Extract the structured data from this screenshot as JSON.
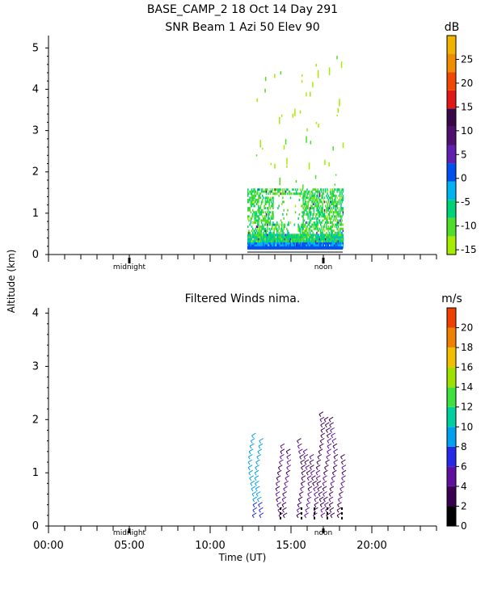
{
  "header": {
    "title": "BASE_CAMP_2   18 Oct 14 Day 291",
    "subtitle": "SNR Beam 1 Azi   50 Elev 90"
  },
  "y_axis_label": "Altitude (km)",
  "x_axis_label": "Time (UT)",
  "markers": {
    "midnight": "midnight",
    "noon": "noon"
  },
  "chart_data": [
    {
      "type": "heatmap",
      "title": "SNR Beam 1 Azi   50 Elev 90",
      "ylabel": "Altitude (km)",
      "xlim": [
        0,
        24
      ],
      "ylim": [
        0,
        5.3
      ],
      "yticks": [
        0,
        1,
        2,
        3,
        4,
        5
      ],
      "colorbar": {
        "unit": "dB",
        "range": [
          -16,
          30
        ],
        "ticks": [
          -15,
          -10,
          -5,
          0,
          5,
          10,
          15,
          20,
          25
        ],
        "colors": [
          "#a6ec00",
          "#50dc28",
          "#00d278",
          "#00b4f0",
          "#0050f0",
          "#6020b0",
          "#501070",
          "#380848",
          "#e01818",
          "#f04800",
          "#f08c00",
          "#f0b400"
        ]
      },
      "data_time_range": [
        12.3,
        18.2
      ]
    },
    {
      "type": "scatter",
      "title": "Filtered Winds nima.",
      "xlabel": "Time (UT)",
      "ylabel": "Altitude (km)",
      "xlim": [
        0,
        24
      ],
      "ylim": [
        0,
        4.1
      ],
      "yticks": [
        0,
        1,
        2,
        3,
        4
      ],
      "xtick_labels": [
        "00:00",
        "05:00",
        "10:00",
        "15:00",
        "20:00"
      ],
      "xticks": [
        0,
        5,
        10,
        15,
        20
      ],
      "colorbar": {
        "unit": "m/s",
        "range": [
          0,
          22
        ],
        "ticks": [
          0,
          2,
          4,
          6,
          8,
          10,
          12,
          14,
          16,
          18,
          20
        ],
        "colors": [
          "#000000",
          "#3a0050",
          "#6010a0",
          "#2828e8",
          "#00a0f0",
          "#00d0a0",
          "#40e040",
          "#a0e000",
          "#f0c000",
          "#f08000",
          "#f04000"
        ]
      },
      "profile_times": [
        12.5,
        12.9,
        14.2,
        14.6,
        15.5,
        15.9,
        16.3,
        16.7,
        17.1,
        17.5,
        18.0
      ],
      "max_altitude_km": [
        1.75,
        1.7,
        1.6,
        1.5,
        1.65,
        1.5,
        1.4,
        2.2,
        2.1,
        2.1,
        1.3
      ]
    }
  ]
}
